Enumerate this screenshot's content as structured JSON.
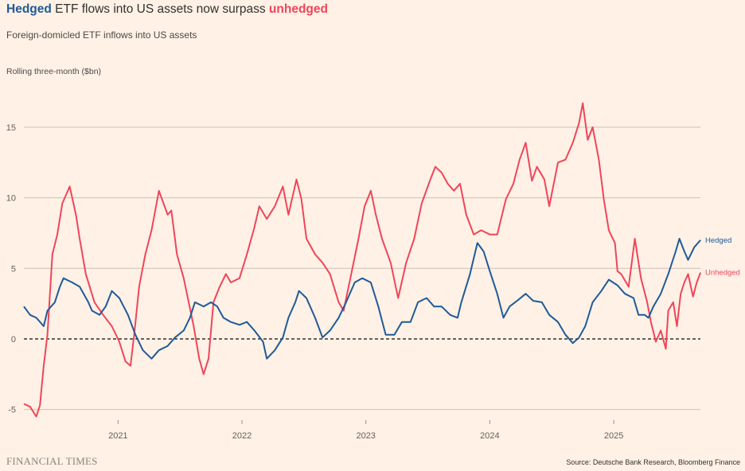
{
  "title": {
    "prefix": "Hedged",
    "middle": " ETF flows into US assets now surpass ",
    "suffix": "unhedged"
  },
  "subtitle": "Foreign-domicled ETF inflows into US assets",
  "footer": {
    "logo": "FINANCIAL TIMES",
    "source": "Source: Deutsche Bank Research, Bloomberg Finance"
  },
  "colors": {
    "hedged": "#1f5a99",
    "unhedged": "#f0455a",
    "background": "#fff1e5"
  },
  "chart_data": {
    "type": "line",
    "title": "Hedged ETF flows into US assets now surpass unhedged",
    "ylabel": "Rolling three-month ($bn)",
    "ylim": [
      -6,
      17
    ],
    "xlim": [
      2020.24,
      2025.7
    ],
    "yticks": [
      "15",
      "10",
      "5",
      "0",
      "-5"
    ],
    "ytick_values": [
      15,
      10,
      5,
      0,
      -5
    ],
    "xticks": [
      "2021",
      "2022",
      "2023",
      "2024",
      "2025"
    ],
    "xtick_values": [
      2021,
      2022,
      2023,
      2024,
      2025
    ],
    "grid": true,
    "zero_line": "dashed",
    "legend": "direct labels at right end",
    "series": [
      {
        "name": "Hedged",
        "color": "#1f5a99",
        "x": [
          2020.24,
          2020.29,
          2020.34,
          2020.4,
          2020.43,
          2020.49,
          2020.53,
          2020.56,
          2020.63,
          2020.69,
          2020.76,
          2020.79,
          2020.85,
          2020.9,
          2020.95,
          2021.01,
          2021.08,
          2021.14,
          2021.2,
          2021.27,
          2021.33,
          2021.4,
          2021.46,
          2021.53,
          2021.58,
          2021.62,
          2021.69,
          2021.75,
          2021.8,
          2021.85,
          2021.91,
          2021.98,
          2022.04,
          2022.1,
          2022.17,
          2022.2,
          2022.265,
          2022.33,
          2022.375,
          2022.43,
          2022.46,
          2022.52,
          2022.59,
          2022.65,
          2022.71,
          2022.78,
          2022.84,
          2022.91,
          2022.97,
          2023.04,
          2023.1,
          2023.16,
          2023.23,
          2023.29,
          2023.36,
          2023.42,
          2023.49,
          2023.55,
          2023.61,
          2023.68,
          2023.74,
          2023.77,
          2023.84,
          2023.9,
          2023.95,
          2024.0,
          2024.06,
          2024.11,
          2024.16,
          2024.22,
          2024.29,
          2024.35,
          2024.42,
          2024.48,
          2024.55,
          2024.61,
          2024.67,
          2024.72,
          2024.77,
          2024.83,
          2024.9,
          2024.96,
          2025.03,
          2025.09,
          2025.16,
          2025.2,
          2025.25,
          2025.28,
          2025.32,
          2025.38,
          2025.44,
          2025.5,
          2025.53,
          2025.57,
          2025.6,
          2025.65,
          2025.7
        ],
        "values": [
          2.3,
          1.7,
          1.5,
          0.9,
          2.0,
          2.6,
          3.7,
          4.3,
          4.0,
          3.7,
          2.6,
          2.0,
          1.7,
          2.3,
          3.4,
          2.9,
          1.7,
          0.3,
          -0.8,
          -1.4,
          -0.8,
          -0.5,
          0.1,
          0.6,
          1.5,
          2.6,
          2.3,
          2.6,
          2.3,
          1.5,
          1.2,
          1.0,
          1.2,
          0.6,
          -0.2,
          -1.4,
          -0.8,
          0.1,
          1.5,
          2.6,
          3.4,
          2.9,
          1.5,
          0.1,
          0.6,
          1.5,
          2.6,
          4.0,
          4.3,
          4.0,
          2.3,
          0.3,
          0.3,
          1.2,
          1.2,
          2.6,
          2.9,
          2.3,
          2.3,
          1.7,
          1.5,
          2.6,
          4.6,
          6.8,
          6.2,
          4.8,
          3.2,
          1.5,
          2.3,
          2.7,
          3.2,
          2.7,
          2.6,
          1.7,
          1.2,
          0.3,
          -0.3,
          0.1,
          0.9,
          2.6,
          3.4,
          4.2,
          3.8,
          3.2,
          2.9,
          1.7,
          1.7,
          1.5,
          2.3,
          3.2,
          4.6,
          6.2,
          7.1,
          6.2,
          5.6,
          6.5,
          7.0
        ]
      },
      {
        "name": "Unhedged",
        "color": "#f0455a",
        "x": [
          2020.24,
          2020.29,
          2020.34,
          2020.37,
          2020.4,
          2020.43,
          2020.47,
          2020.51,
          2020.55,
          2020.61,
          2020.66,
          2020.69,
          2020.74,
          2020.81,
          2020.88,
          2020.95,
          2021.01,
          2021.06,
          2021.1,
          2021.13,
          2021.17,
          2021.22,
          2021.27,
          2021.33,
          2021.4,
          2021.43,
          2021.475,
          2021.53,
          2021.57,
          2021.61,
          2021.655,
          2021.69,
          2021.73,
          2021.77,
          2021.82,
          2021.87,
          2021.91,
          2021.98,
          2022.04,
          2022.1,
          2022.14,
          2022.2,
          2022.265,
          2022.33,
          2022.375,
          2022.44,
          2022.48,
          2022.52,
          2022.59,
          2022.65,
          2022.71,
          2022.78,
          2022.82,
          2022.875,
          2022.94,
          2022.99,
          2023.04,
          2023.08,
          2023.13,
          2023.2,
          2023.26,
          2023.325,
          2023.39,
          2023.45,
          2023.52,
          2023.56,
          2023.61,
          2023.66,
          2023.71,
          2023.76,
          2023.81,
          2023.87,
          2023.93,
          2024.0,
          2024.06,
          2024.13,
          2024.19,
          2024.24,
          2024.29,
          2024.34,
          2024.38,
          2024.44,
          2024.48,
          2024.55,
          2024.61,
          2024.67,
          2024.72,
          2024.75,
          2024.79,
          2024.83,
          2024.88,
          2024.92,
          2024.96,
          2025.01,
          2025.03,
          2025.06,
          2025.12,
          2025.17,
          2025.22,
          2025.27,
          2025.3,
          2025.34,
          2025.38,
          2025.42,
          2025.44,
          2025.48,
          2025.51,
          2025.54,
          2025.57,
          2025.6,
          2025.64,
          2025.67,
          2025.7
        ],
        "values": [
          -4.6,
          -4.8,
          -5.5,
          -4.7,
          -1.9,
          0.3,
          6.0,
          7.4,
          9.6,
          10.8,
          8.8,
          7.1,
          4.6,
          2.6,
          1.7,
          0.9,
          -0.2,
          -1.6,
          -1.9,
          0.3,
          3.7,
          6.0,
          7.7,
          10.5,
          8.8,
          9.1,
          6.0,
          4.3,
          2.6,
          0.9,
          -1.4,
          -2.5,
          -1.4,
          2.6,
          3.7,
          4.6,
          4.0,
          4.3,
          6.0,
          7.9,
          9.4,
          8.5,
          9.4,
          10.8,
          8.8,
          11.3,
          9.9,
          7.1,
          6.0,
          5.4,
          4.6,
          2.6,
          2.0,
          4.3,
          7.1,
          9.4,
          10.5,
          8.8,
          7.1,
          5.4,
          2.9,
          5.4,
          7.1,
          9.6,
          11.3,
          12.2,
          11.8,
          11.0,
          10.5,
          11.0,
          8.8,
          7.4,
          7.7,
          7.4,
          7.4,
          9.9,
          11.0,
          12.7,
          13.9,
          11.2,
          12.2,
          11.3,
          9.4,
          12.5,
          12.7,
          13.9,
          15.3,
          16.7,
          14.1,
          15.0,
          12.7,
          9.9,
          7.7,
          6.8,
          4.8,
          4.6,
          3.7,
          7.1,
          4.3,
          2.6,
          1.2,
          -0.2,
          0.6,
          -0.7,
          2.0,
          2.6,
          0.9,
          3.2,
          4.0,
          4.6,
          3.0,
          4.0,
          4.7
        ]
      }
    ]
  }
}
